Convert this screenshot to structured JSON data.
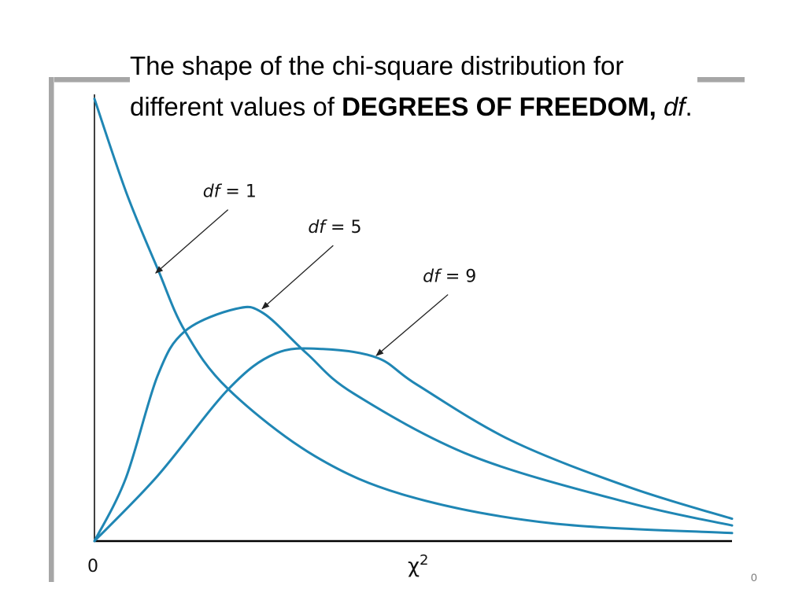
{
  "slide": {
    "title_line1": "The shape of the chi-square distribution for",
    "title_line2_prefix": "different values of ",
    "title_line2_bold": "DEGREES OF FREEDOM,",
    "title_line2_italic": "df",
    "title_line2_suffix": ".",
    "page_number": "0"
  },
  "chart_data": {
    "type": "line",
    "title": "",
    "xlabel": "χ2",
    "ylabel": "",
    "x_tick_labels": [
      "0"
    ],
    "xlim": [
      0,
      10
    ],
    "ylim": [
      0,
      1
    ],
    "grid": false,
    "line_color": "#1f86b4",
    "series": [
      {
        "name": "df = 1",
        "label_var": "df",
        "label_value": "= 1",
        "points": [
          [
            0.0,
            0.99
          ],
          [
            0.5,
            0.78
          ],
          [
            0.99,
            0.61
          ],
          [
            1.42,
            0.47
          ],
          [
            2.1,
            0.34
          ],
          [
            3.46,
            0.19
          ],
          [
            4.94,
            0.1
          ],
          [
            7.16,
            0.04
          ],
          [
            10,
            0.018
          ]
        ]
      },
      {
        "name": "df = 5",
        "label_var": "df",
        "label_value": "= 5",
        "points": [
          [
            0,
            0
          ],
          [
            0.49,
            0.14
          ],
          [
            0.99,
            0.37
          ],
          [
            1.42,
            0.47
          ],
          [
            2.22,
            0.52
          ],
          [
            2.65,
            0.51
          ],
          [
            3.33,
            0.42
          ],
          [
            4.07,
            0.33
          ],
          [
            5.93,
            0.19
          ],
          [
            8.4,
            0.085
          ],
          [
            10,
            0.035
          ]
        ]
      },
      {
        "name": "df = 9",
        "label_var": "df",
        "label_value": "= 9",
        "points": [
          [
            0,
            0
          ],
          [
            0.99,
            0.146
          ],
          [
            2.1,
            0.34
          ],
          [
            2.84,
            0.42
          ],
          [
            3.58,
            0.43
          ],
          [
            4.44,
            0.41
          ],
          [
            5.06,
            0.35
          ],
          [
            6.54,
            0.225
          ],
          [
            8.4,
            0.12
          ],
          [
            10,
            0.05
          ]
        ]
      }
    ],
    "annotations": [
      {
        "series": 0,
        "label_at": [
          1.7,
          0.77
        ],
        "arrow_to": [
          0.96,
          0.6
        ]
      },
      {
        "series": 1,
        "label_at": [
          3.35,
          0.69
        ],
        "arrow_to": [
          2.63,
          0.52
        ]
      },
      {
        "series": 2,
        "label_at": [
          5.15,
          0.58
        ],
        "arrow_to": [
          4.42,
          0.415
        ]
      }
    ]
  }
}
